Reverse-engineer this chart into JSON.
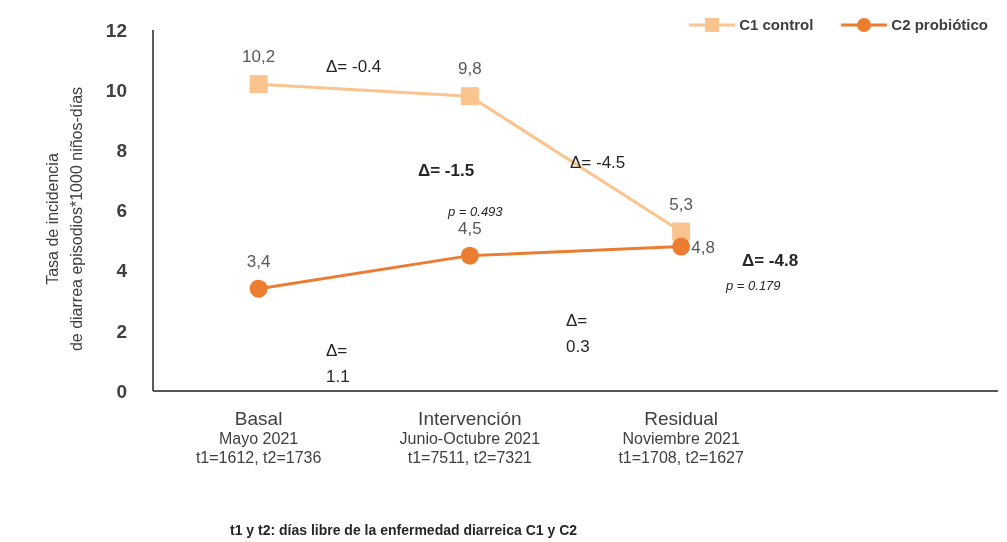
{
  "chart_data": {
    "type": "line",
    "ylabel": "Tasa de incidencia\nde diarrea  episodios*1000 niños-días",
    "categories": [
      "Basal\nMayo 2021\nt1=1612, t2=1736",
      "Intervención\nJunio-Octubre 2021\nt1=7511, t2=7321",
      "Residual\nNoviembre 2021\nt1=1708, t2=1627",
      null
    ],
    "series": [
      {
        "name": "C1 control",
        "color": "#fbc48f",
        "marker": "square",
        "values": [
          10.2,
          9.8,
          5.3,
          null
        ],
        "value_labels": [
          "10,2",
          "9,8",
          "5,3",
          null
        ]
      },
      {
        "name": "C2 probiótico",
        "color": "#ec7c30",
        "marker": "circle",
        "values": [
          3.4,
          4.5,
          4.8,
          null
        ],
        "value_labels": [
          "3,4",
          "4,5",
          "4,8",
          null
        ]
      }
    ],
    "ylim": [
      0,
      12
    ],
    "yticks": [
      0,
      2,
      4,
      6,
      8,
      10,
      12
    ],
    "grid": false,
    "legend": "top right",
    "annotations": [
      "Δ= -0.4",
      "Δ= -1.5",
      "Δ= -4.5",
      "p = 0.493",
      "Δ= -4.8",
      "p = 0.179",
      "Δ=\n0.3",
      "Δ=\n1.1",
      "t1 y t2: días libre de la enfermedad diarreica C1 y C2"
    ]
  }
}
